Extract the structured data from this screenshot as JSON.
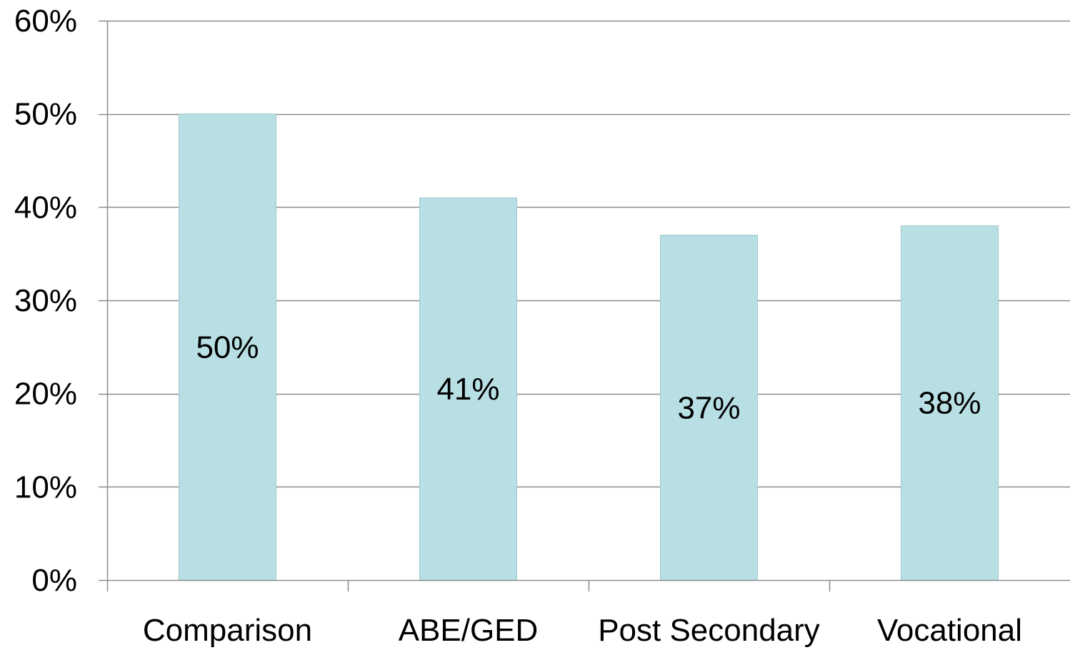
{
  "chart_data": {
    "type": "bar",
    "categories": [
      "Comparison",
      "ABE/GED",
      "Post Secondary",
      "Vocational"
    ],
    "values": [
      50,
      41,
      37,
      38
    ],
    "data_labels": [
      "50%",
      "41%",
      "37%",
      "38%"
    ],
    "ylim": [
      0,
      60
    ],
    "yticks": [
      0,
      10,
      20,
      30,
      40,
      50,
      60
    ],
    "ytick_labels": [
      "0%",
      "10%",
      "20%",
      "30%",
      "40%",
      "50%",
      "60%"
    ],
    "grid": true,
    "legend": "none",
    "colors": {
      "bar_fill": "#b8dfe3",
      "bar_stroke": "#9fc9ce",
      "gridline": "#8c8c8c",
      "axis": "#8c8c8c",
      "text": "#000000"
    }
  }
}
